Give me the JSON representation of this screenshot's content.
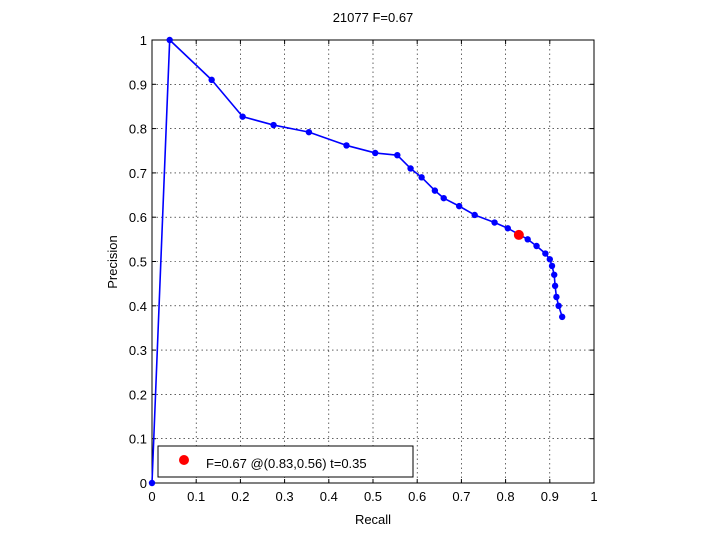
{
  "chart_data": {
    "type": "line",
    "title": "21077 F=0.67",
    "xlabel": "Recall",
    "ylabel": "Precision",
    "xlim": [
      0,
      1
    ],
    "ylim": [
      0,
      1
    ],
    "xticks": [
      "0",
      "0.1",
      "0.2",
      "0.3",
      "0.4",
      "0.5",
      "0.6",
      "0.7",
      "0.8",
      "0.9",
      "1"
    ],
    "yticks": [
      "0",
      "0.1",
      "0.2",
      "0.3",
      "0.4",
      "0.5",
      "0.6",
      "0.7",
      "0.8",
      "0.9",
      "1"
    ],
    "grid": true,
    "series": [
      {
        "color": "#0000ff",
        "x": [
          0.0,
          0.04,
          0.135,
          0.205,
          0.275,
          0.355,
          0.44,
          0.505,
          0.555,
          0.585,
          0.61,
          0.64,
          0.66,
          0.695,
          0.73,
          0.775,
          0.805,
          0.85,
          0.87,
          0.89,
          0.9,
          0.905,
          0.91,
          0.912,
          0.915,
          0.92,
          0.928
        ],
        "y": [
          0.0,
          1.0,
          0.91,
          0.827,
          0.808,
          0.792,
          0.762,
          0.745,
          0.74,
          0.71,
          0.69,
          0.66,
          0.643,
          0.625,
          0.605,
          0.588,
          0.575,
          0.55,
          0.535,
          0.518,
          0.505,
          0.49,
          0.47,
          0.445,
          0.42,
          0.4,
          0.375
        ]
      }
    ],
    "highlight": {
      "x": 0.83,
      "y": 0.56,
      "color": "#ff0000"
    },
    "legend": {
      "text": "F=0.67 @(0.83,0.56) t=0.35",
      "placement": "bottom-left"
    }
  }
}
